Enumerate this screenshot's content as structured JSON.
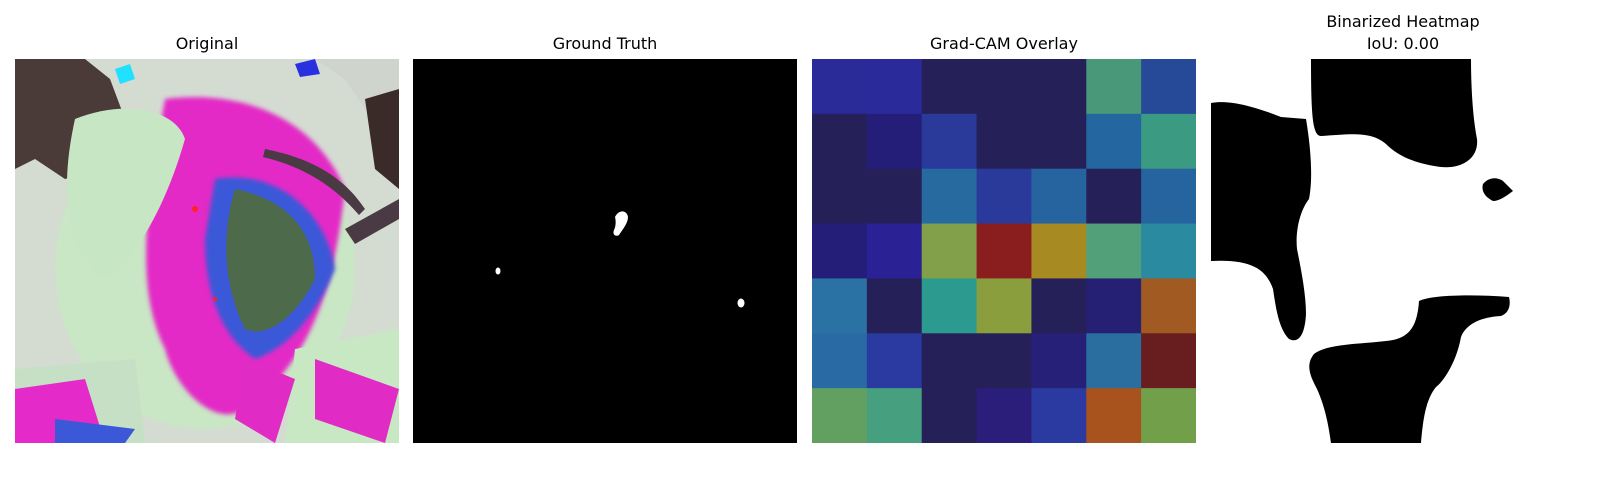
{
  "panels": [
    {
      "title": "Original"
    },
    {
      "title": "Ground Truth"
    },
    {
      "title": "Grad-CAM Overlay"
    },
    {
      "title": "Binarized Heatmap",
      "subtitle": "IoU: 0.00"
    }
  ],
  "gradcam_grid": {
    "rows": 7,
    "cols": 7,
    "colors": [
      [
        "#2a2a98",
        "#2a2a9a",
        "#262058",
        "#262058",
        "#262058",
        "#4a987a",
        "#264a98"
      ],
      [
        "#262058",
        "#241e78",
        "#2a3a9a",
        "#262058",
        "#262058",
        "#2466a0",
        "#3a9a82"
      ],
      [
        "#262058",
        "#262058",
        "#266aa0",
        "#2a3a9a",
        "#2664a0",
        "#262058",
        "#2664a0"
      ],
      [
        "#241e78",
        "#2a2294",
        "#82a04a",
        "#8a1e1e",
        "#a88a22",
        "#52a07a",
        "#2a8aa0"
      ],
      [
        "#2a72a4",
        "#262058",
        "#2c9a8e",
        "#8a9e3e",
        "#262058",
        "#262074",
        "#a05a22"
      ],
      [
        "#2a6aa4",
        "#2a3aa0",
        "#262058",
        "#262058",
        "#262078",
        "#2a6ea0",
        "#681e1e"
      ],
      [
        "#62a062",
        "#46a080",
        "#262058",
        "#2a1e7a",
        "#2a3aa0",
        "#a8521e",
        "#72a04a"
      ]
    ]
  },
  "colors": {
    "background": "#ffffff",
    "mask_background": "#000000",
    "mask_foreground": "#ffffff"
  }
}
